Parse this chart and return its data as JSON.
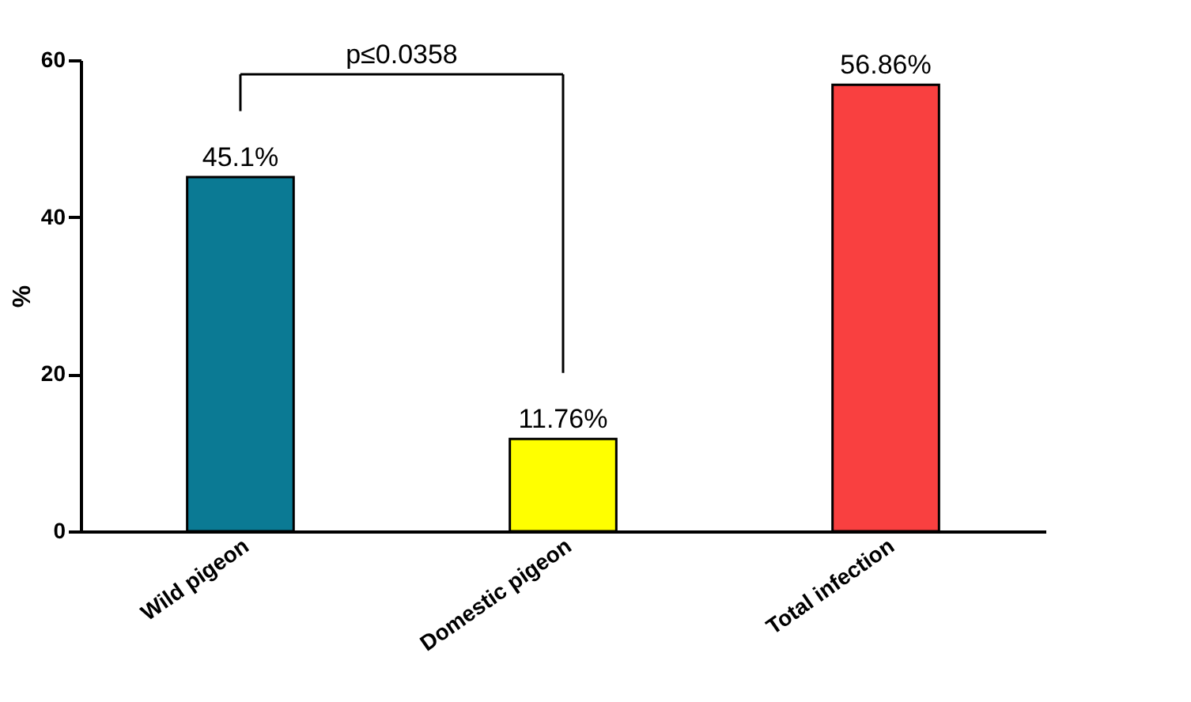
{
  "chart_data": {
    "type": "bar",
    "ylabel": "%",
    "categories": [
      "Wild pigeon",
      "Domestic pigeon",
      "Total infection"
    ],
    "values": [
      45.1,
      11.76,
      56.86
    ],
    "colors": [
      "#0b7a94",
      "#ffff00",
      "#f94040"
    ],
    "value_labels": [
      "45.1%",
      "11.76%",
      "56.86%"
    ],
    "ylim": [
      0,
      60
    ],
    "yticks": [
      0,
      20,
      40,
      60
    ],
    "grid": false,
    "annotations": [
      "p≤0.0358"
    ]
  }
}
